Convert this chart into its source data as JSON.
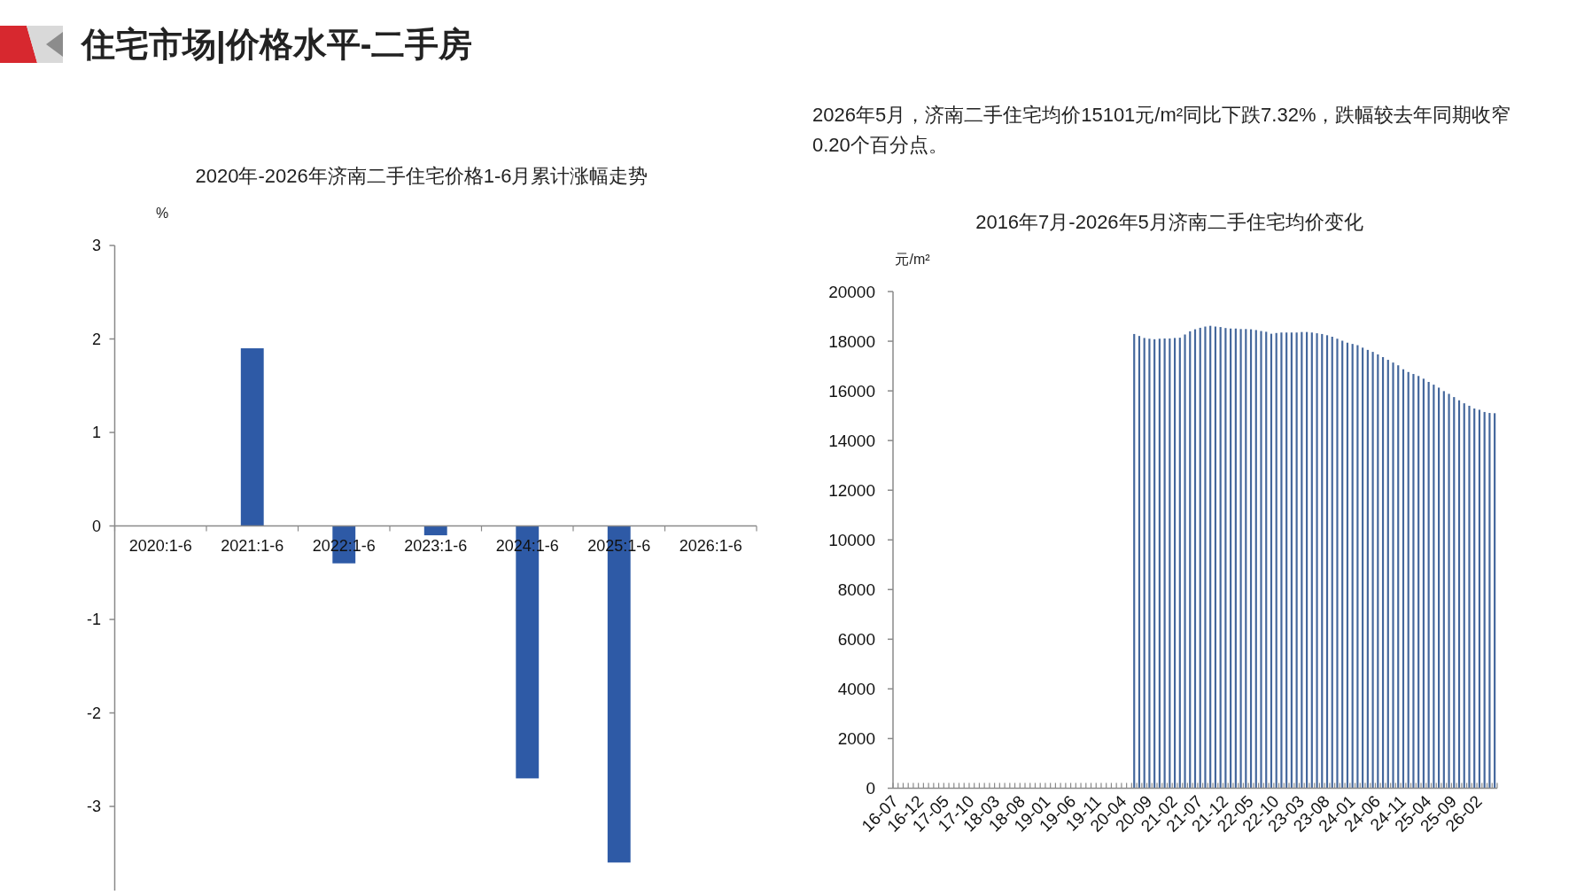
{
  "chart_data": [
    {
      "type": "bar",
      "title": "2020年-2026年济南二手住宅价格1-6月累计涨幅走势",
      "ylabel": "%",
      "annotations": [
        "住宅市场|价格水平-二手房"
      ],
      "categories": [
        "2020:1-6",
        "2021:1-6",
        "2022:1-6",
        "2023:1-6",
        "2024:1-6",
        "2025:1-6",
        "2026:1-6"
      ],
      "values": [
        null,
        1.9,
        -0.4,
        -0.1,
        -2.7,
        -3.6,
        null
      ],
      "color": "#2e5aa6",
      "ylim": [
        -3.9,
        3
      ],
      "yticks": [
        3,
        2,
        1,
        0,
        -1,
        -2,
        -3
      ]
    },
    {
      "type": "bar",
      "title": "2016年7月-2026年5月济南二手住宅均价变化",
      "ylabel": "元/m²",
      "annotations": [
        "2026年5月，济南二手住宅均价15101元/m²同比下跌7.32%，跌幅较去年同期收窄0.20个百分点。"
      ],
      "categories": [
        "16-07",
        null,
        null,
        null,
        null,
        "16-12",
        null,
        null,
        null,
        null,
        "17-05",
        null,
        null,
        null,
        null,
        "17-10",
        null,
        null,
        null,
        null,
        "18-03",
        null,
        null,
        null,
        null,
        "18-08",
        null,
        null,
        null,
        null,
        "19-01",
        null,
        null,
        null,
        null,
        "19-06",
        null,
        null,
        null,
        null,
        "19-11",
        null,
        null,
        null,
        null,
        "20-04",
        null,
        null,
        null,
        null,
        "20-09",
        null,
        null,
        null,
        null,
        "21-02",
        null,
        null,
        null,
        null,
        "21-07",
        null,
        null,
        null,
        null,
        "21-12",
        null,
        null,
        null,
        null,
        "22-05",
        null,
        null,
        null,
        null,
        "22-10",
        null,
        null,
        null,
        null,
        "23-03",
        null,
        null,
        null,
        null,
        "23-08",
        null,
        null,
        null,
        null,
        "24-01",
        null,
        null,
        null,
        null,
        "24-06",
        null,
        null,
        null,
        null,
        "24-11",
        null,
        null,
        null,
        null,
        "25-04",
        null,
        null,
        null,
        null,
        "25-09",
        null,
        null,
        null,
        null,
        "26-02",
        null,
        null,
        null
      ],
      "values": [
        null,
        null,
        null,
        null,
        null,
        null,
        null,
        null,
        null,
        null,
        null,
        null,
        null,
        null,
        null,
        null,
        null,
        null,
        null,
        null,
        null,
        null,
        null,
        null,
        null,
        null,
        null,
        null,
        null,
        null,
        null,
        null,
        null,
        null,
        null,
        null,
        null,
        null,
        null,
        null,
        null,
        null,
        null,
        null,
        null,
        null,
        null,
        18290,
        18210,
        18130,
        18100,
        18080,
        18100,
        18110,
        18110,
        18130,
        18140,
        18270,
        18400,
        18480,
        18540,
        18590,
        18620,
        18590,
        18570,
        18530,
        18510,
        18510,
        18490,
        18490,
        18480,
        18450,
        18410,
        18380,
        18300,
        18330,
        18350,
        18350,
        18350,
        18350,
        18370,
        18370,
        18350,
        18320,
        18290,
        18240,
        18180,
        18100,
        18020,
        17940,
        17890,
        17840,
        17740,
        17650,
        17570,
        17470,
        17360,
        17250,
        17140,
        17030,
        16870,
        16760,
        16680,
        16600,
        16490,
        16360,
        16250,
        16130,
        15990,
        15880,
        15750,
        15620,
        15500,
        15400,
        15290,
        15240,
        15150,
        15110,
        15100
      ],
      "color": "#44679c",
      "ylim": [
        0,
        20000
      ],
      "yticks": [
        0,
        2000,
        4000,
        6000,
        8000,
        10000,
        12000,
        14000,
        16000,
        18000,
        20000
      ]
    }
  ]
}
